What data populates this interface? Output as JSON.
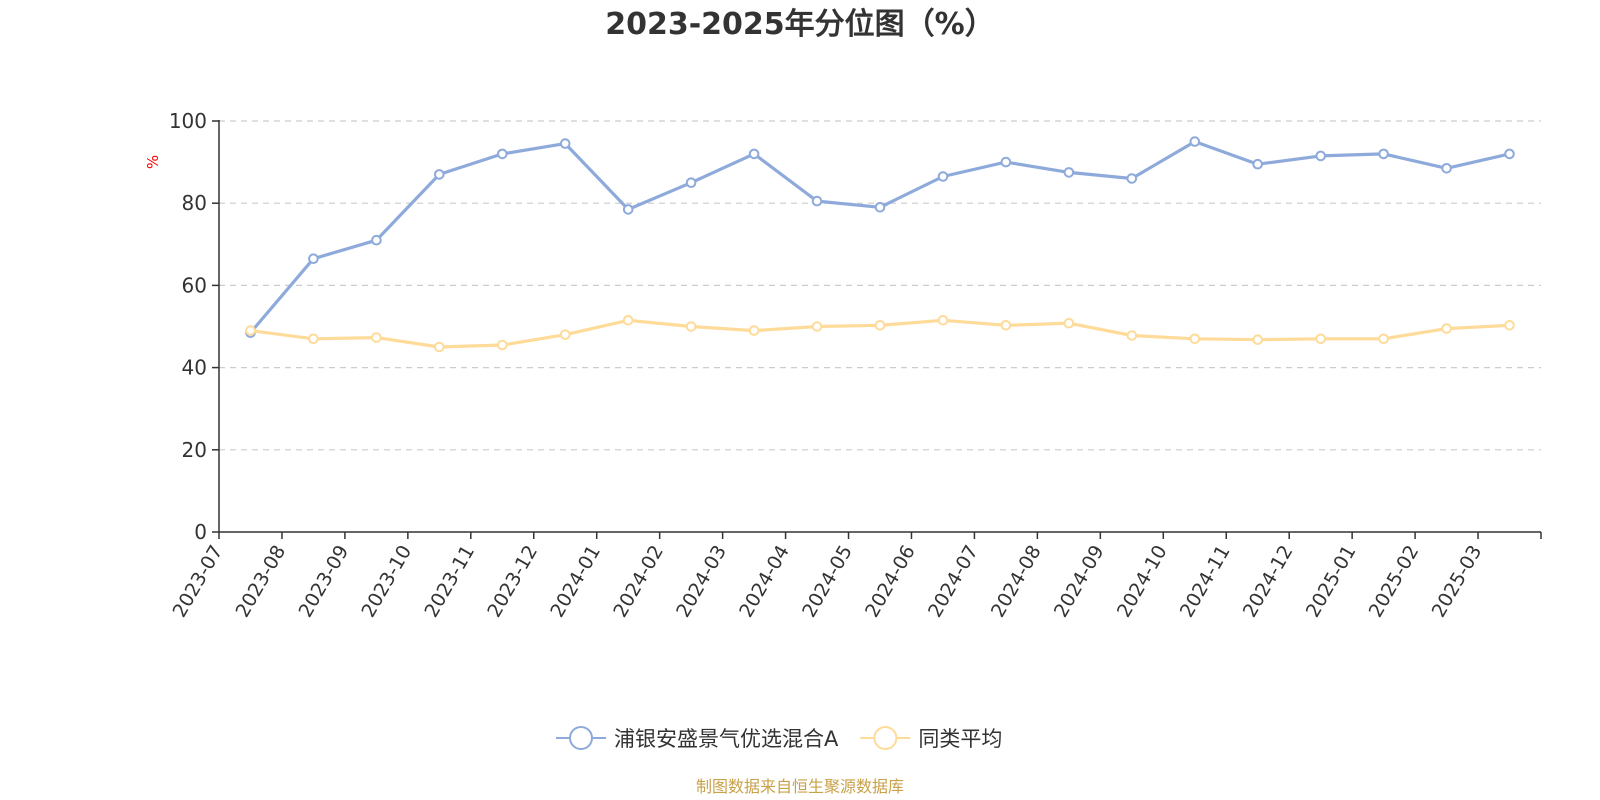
{
  "chart_data": {
    "type": "line",
    "title": "2023-2025年分位图（%）",
    "ylabel": "%",
    "xlabel": "",
    "ylim": [
      0,
      100
    ],
    "yticks": [
      0,
      20,
      40,
      60,
      80,
      100
    ],
    "grid": "horizontal-dashed",
    "legend_position": "bottom-center",
    "categories": [
      "2023-07",
      "2023-08",
      "2023-09",
      "2023-10",
      "2023-11",
      "2023-12",
      "2024-01",
      "2024-02",
      "2024-03",
      "2024-04",
      "2024-05",
      "2024-06",
      "2024-07",
      "2024-08",
      "2024-09",
      "2024-10",
      "2024-11",
      "2024-12",
      "2025-01",
      "2025-02",
      "2025-03"
    ],
    "series": [
      {
        "name": "浦银安盛景气优选混合A",
        "color": "#8eaadb",
        "values": [
          48.5,
          66.5,
          71.0,
          87.0,
          92.0,
          94.5,
          78.5,
          85.0,
          92.0,
          80.5,
          79.0,
          86.5,
          90.0,
          87.5,
          86.0,
          95.0,
          89.5,
          91.5,
          92.0,
          88.5,
          92.0
        ]
      },
      {
        "name": "同类平均",
        "color": "#fedb99",
        "values": [
          49.0,
          47.0,
          47.3,
          45.0,
          45.5,
          48.0,
          51.5,
          50.0,
          49.0,
          50.0,
          50.3,
          51.5,
          50.3,
          50.8,
          47.8,
          47.0,
          46.8,
          47.0,
          47.0,
          49.5,
          50.3
        ]
      }
    ],
    "source": "制图数据来自恒生聚源数据库",
    "colors": {
      "axis": "#333333",
      "grid": "#cccccc",
      "unit_label": "#ff0000",
      "source_label": "#c8a24a"
    }
  }
}
